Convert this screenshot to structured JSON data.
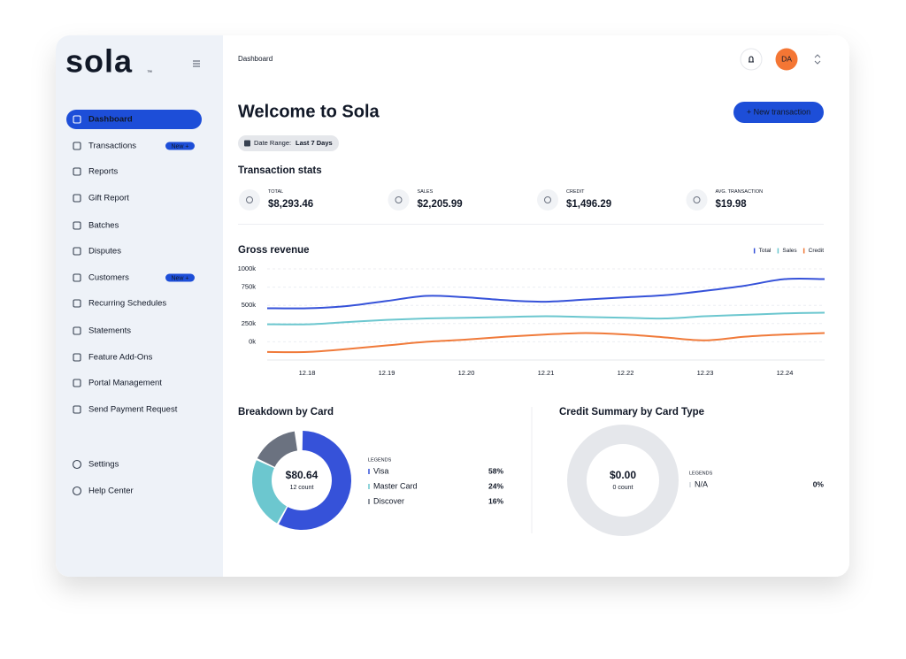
{
  "sidebar": {
    "logo": "sola",
    "logo_tm": "™",
    "nav": [
      {
        "label": "Dashboard",
        "active": true
      },
      {
        "label": "Transactions",
        "badge": "New +"
      },
      {
        "label": "Reports"
      },
      {
        "label": "Gift Report"
      },
      {
        "label": "Batches"
      },
      {
        "label": "Disputes"
      },
      {
        "label": "Customers",
        "badge": "New +"
      },
      {
        "label": "Recurring Schedules"
      },
      {
        "label": "Statements"
      },
      {
        "label": "Feature Add-Ons"
      },
      {
        "label": "Portal Management"
      },
      {
        "label": "Send Payment Request"
      }
    ],
    "footer_nav": [
      {
        "label": "Settings"
      },
      {
        "label": "Help Center"
      }
    ]
  },
  "header": {
    "breadcrumb": "Dashboard",
    "avatar": "DA"
  },
  "page": {
    "title": "Welcome to Sola",
    "button": "+ New transaction",
    "date_range_label": "Date Range:",
    "date_range_value": "Last 7 Days"
  },
  "stats": {
    "title": "Transaction stats",
    "items": [
      {
        "label": "TOTAL",
        "value": "$8,293.46"
      },
      {
        "label": "SALES",
        "value": "$2,205.99"
      },
      {
        "label": "CREDIT",
        "value": "$1,496.29"
      },
      {
        "label": "AVG. TRANSACTION",
        "value": "$19.98"
      }
    ]
  },
  "chart_data": [
    {
      "type": "line",
      "title": "Gross revenue",
      "categories": [
        null,
        "12.18",
        null,
        "12.19",
        null,
        "12.20",
        null,
        "12.21",
        null,
        "12.22",
        null,
        "12.23",
        null,
        "12.24",
        null
      ],
      "series": [
        {
          "name": "Total",
          "color": "#3652d9",
          "values": [
            460,
            460,
            490,
            560,
            630,
            610,
            570,
            550,
            580,
            610,
            640,
            700,
            770,
            860,
            860
          ]
        },
        {
          "name": "Sales",
          "color": "#6cc7cf",
          "values": [
            240,
            240,
            270,
            300,
            320,
            330,
            340,
            350,
            340,
            330,
            320,
            350,
            370,
            390,
            400
          ]
        },
        {
          "name": "Credit",
          "color": "#f07a3a",
          "values": [
            -140,
            -140,
            -100,
            -50,
            0,
            30,
            70,
            100,
            120,
            100,
            60,
            20,
            70,
            100,
            120
          ]
        }
      ],
      "ylim": [
        -250,
        1000
      ],
      "yticks": [
        {
          "value": 1000,
          "label": "1000k"
        },
        {
          "value": 750,
          "label": "750k"
        },
        {
          "value": 500,
          "label": "500k"
        },
        {
          "value": 250,
          "label": "250k"
        },
        {
          "value": 0,
          "label": "0k"
        }
      ],
      "grid": true,
      "legend": "top-right"
    },
    {
      "type": "donut",
      "title": "Breakdown by Card",
      "center_value": "$80.64",
      "center_label": "12 count",
      "legend_title": "LEGENDS",
      "categories": [
        "Visa",
        "Master Card",
        "Discover"
      ],
      "values": [
        58,
        24,
        16
      ],
      "value_labels": [
        "58%",
        "24%",
        "16%"
      ],
      "colors": [
        "#3652d9",
        "#6cc7cf",
        "#6b7280"
      ]
    },
    {
      "type": "donut",
      "title": "Credit Summary by Card Type",
      "center_value": "$0.00",
      "center_label": "0 count",
      "legend_title": "LEGENDS",
      "categories": [
        "N/A"
      ],
      "values": [
        0
      ],
      "value_labels": [
        "0%"
      ],
      "colors": [
        "#d1d5db"
      ]
    }
  ]
}
